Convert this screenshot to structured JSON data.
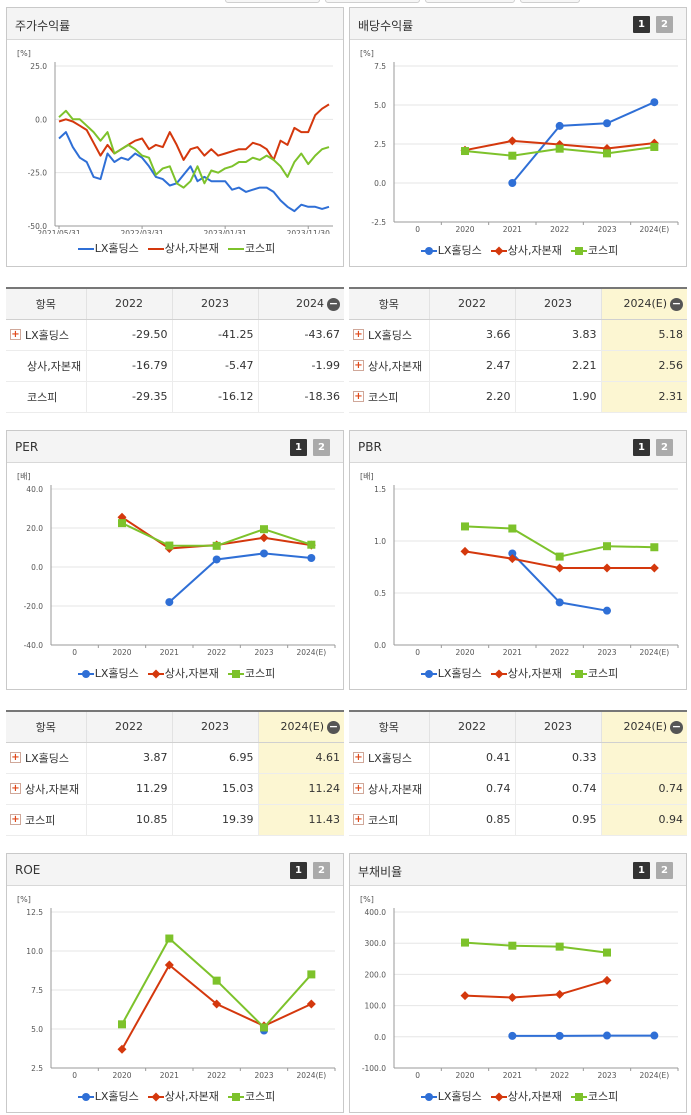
{
  "panels": [
    {
      "id": "stock-return",
      "title": "주가수익률",
      "paged": false,
      "chart_data": {
        "type": "line",
        "unit": "[%]",
        "ylim": [
          -50,
          25
        ],
        "yticks": [
          "25.0",
          "0.0",
          "-25.0",
          "-50.0"
        ],
        "ytickvals": [
          25,
          0,
          -25,
          -50
        ],
        "xticks": [
          "2021/05/31",
          "2022/03/31",
          "2023/01/31",
          "2023/11/30"
        ],
        "points": 40,
        "series": [
          {
            "name": "LX홀딩스",
            "color": "#2f6fd6",
            "marker": "none",
            "values": [
              -9,
              -6,
              -13,
              -18,
              -20,
              -27,
              -28,
              -16,
              -20,
              -18,
              -19,
              -16,
              -18,
              -22,
              -27,
              -28,
              -31,
              -30,
              -26,
              -22,
              -29,
              -27,
              -29,
              -29,
              -29,
              -33,
              -32,
              -34,
              -33,
              -32,
              -32,
              -34,
              -38,
              -41,
              -43,
              -40,
              -41,
              -41,
              -42,
              -41
            ]
          },
          {
            "name": "상사,자본재",
            "color": "#d4380d",
            "marker": "none",
            "values": [
              -1,
              0,
              -1,
              -3,
              -5,
              -11,
              -17,
              -12,
              -16,
              -14,
              -12,
              -10,
              -9,
              -14,
              -12,
              -13,
              -6,
              -12,
              -19,
              -14,
              -13,
              -17,
              -14,
              -17,
              -16,
              -15,
              -14,
              -14,
              -11,
              -12,
              -14,
              -19,
              -10,
              -12,
              -4,
              -6,
              -6,
              2,
              5,
              7
            ]
          },
          {
            "name": "코스피",
            "color": "#7dc22b",
            "marker": "none",
            "values": [
              1,
              4,
              0,
              0,
              -3,
              -6,
              -10,
              -6,
              -16,
              -14,
              -12,
              -14,
              -17,
              -18,
              -26,
              -23,
              -22,
              -30,
              -32,
              -29,
              -22,
              -30,
              -24,
              -25,
              -23,
              -22,
              -20,
              -20,
              -18,
              -19,
              -17,
              -19,
              -22,
              -27,
              -20,
              -16,
              -21,
              -17,
              -14,
              -13
            ]
          }
        ]
      },
      "table": {
        "headers": [
          "항목",
          "2022",
          "2023",
          "2024"
        ],
        "has_estimate": false,
        "rows": [
          {
            "label": "LX홀딩스",
            "plus": true,
            "values": [
              "-29.50",
              "-41.25",
              "-43.67"
            ]
          },
          {
            "label": "상사,자본재",
            "plus": false,
            "values": [
              "-16.79",
              "-5.47",
              "-1.99"
            ]
          },
          {
            "label": "코스피",
            "plus": false,
            "values": [
              "-29.35",
              "-16.12",
              "-18.36"
            ]
          }
        ]
      }
    },
    {
      "id": "dividend-yield",
      "title": "배당수익률",
      "paged": true,
      "page_labels": [
        "1",
        "2"
      ],
      "chart_data": {
        "type": "line",
        "unit": "[%]",
        "ylim": [
          -2.5,
          7.5
        ],
        "yticks": [
          "7.5",
          "5.0",
          "2.5",
          "0.0",
          "-2.5"
        ],
        "ytickvals": [
          7.5,
          5,
          2.5,
          0,
          -2.5
        ],
        "xticks": [
          "0",
          "2020",
          "2021",
          "2022",
          "2023",
          "2024(E)"
        ],
        "series": [
          {
            "name": "LX홀딩스",
            "color": "#2f6fd6",
            "marker": "circle",
            "values": [
              null,
              null,
              0.0,
              3.66,
              3.83,
              5.18
            ]
          },
          {
            "name": "상사,자본재",
            "color": "#d4380d",
            "marker": "diamond",
            "values": [
              null,
              2.1,
              2.7,
              2.47,
              2.21,
              2.56
            ]
          },
          {
            "name": "코스피",
            "color": "#7dc22b",
            "marker": "square",
            "values": [
              null,
              2.05,
              1.75,
              2.2,
              1.9,
              2.31
            ]
          }
        ]
      },
      "table": {
        "headers": [
          "항목",
          "2022",
          "2023",
          "2024(E)"
        ],
        "has_estimate": true,
        "rows": [
          {
            "label": "LX홀딩스",
            "plus": true,
            "values": [
              "3.66",
              "3.83",
              "5.18"
            ]
          },
          {
            "label": "상사,자본재",
            "plus": true,
            "values": [
              "2.47",
              "2.21",
              "2.56"
            ]
          },
          {
            "label": "코스피",
            "plus": true,
            "values": [
              "2.20",
              "1.90",
              "2.31"
            ]
          }
        ]
      }
    },
    {
      "id": "per",
      "title": "PER",
      "paged": true,
      "page_labels": [
        "1",
        "2"
      ],
      "chart_data": {
        "type": "line",
        "unit": "[배]",
        "ylim": [
          -40,
          40
        ],
        "yticks": [
          "40.0",
          "20.0",
          "0.0",
          "-20.0",
          "-40.0"
        ],
        "ytickvals": [
          40,
          20,
          0,
          -20,
          -40
        ],
        "xticks": [
          "0",
          "2020",
          "2021",
          "2022",
          "2023",
          "2024(E)"
        ],
        "series": [
          {
            "name": "LX홀딩스",
            "color": "#2f6fd6",
            "marker": "circle",
            "values": [
              null,
              null,
              -18,
              3.87,
              6.95,
              4.61
            ]
          },
          {
            "name": "상사,자본재",
            "color": "#d4380d",
            "marker": "diamond",
            "values": [
              null,
              25.5,
              9.5,
              11.29,
              15.03,
              11.24
            ]
          },
          {
            "name": "코스피",
            "color": "#7dc22b",
            "marker": "square",
            "values": [
              null,
              22.5,
              11.0,
              10.85,
              19.39,
              11.43
            ]
          }
        ]
      },
      "table": {
        "headers": [
          "항목",
          "2022",
          "2023",
          "2024(E)"
        ],
        "has_estimate": true,
        "rows": [
          {
            "label": "LX홀딩스",
            "plus": true,
            "values": [
              "3.87",
              "6.95",
              "4.61"
            ]
          },
          {
            "label": "상사,자본재",
            "plus": true,
            "values": [
              "11.29",
              "15.03",
              "11.24"
            ]
          },
          {
            "label": "코스피",
            "plus": true,
            "values": [
              "10.85",
              "19.39",
              "11.43"
            ]
          }
        ]
      }
    },
    {
      "id": "pbr",
      "title": "PBR",
      "paged": true,
      "page_labels": [
        "1",
        "2"
      ],
      "chart_data": {
        "type": "line",
        "unit": "[배]",
        "ylim": [
          0,
          1.5
        ],
        "yticks": [
          "1.5",
          "1.0",
          "0.5",
          "0.0"
        ],
        "ytickvals": [
          1.5,
          1.0,
          0.5,
          0
        ],
        "xticks": [
          "0",
          "2020",
          "2021",
          "2022",
          "2023",
          "2024(E)"
        ],
        "series": [
          {
            "name": "LX홀딩스",
            "color": "#2f6fd6",
            "marker": "circle",
            "values": [
              null,
              null,
              0.88,
              0.41,
              0.33,
              null
            ]
          },
          {
            "name": "상사,자본재",
            "color": "#d4380d",
            "marker": "diamond",
            "values": [
              null,
              0.9,
              0.83,
              0.74,
              0.74,
              0.74
            ]
          },
          {
            "name": "코스피",
            "color": "#7dc22b",
            "marker": "square",
            "values": [
              null,
              1.14,
              1.12,
              0.85,
              0.95,
              0.94
            ]
          }
        ]
      },
      "table": {
        "headers": [
          "항목",
          "2022",
          "2023",
          "2024(E)"
        ],
        "has_estimate": true,
        "rows": [
          {
            "label": "LX홀딩스",
            "plus": true,
            "values": [
              "0.41",
              "0.33",
              ""
            ]
          },
          {
            "label": "상사,자본재",
            "plus": true,
            "values": [
              "0.74",
              "0.74",
              "0.74"
            ]
          },
          {
            "label": "코스피",
            "plus": true,
            "values": [
              "0.85",
              "0.95",
              "0.94"
            ]
          }
        ]
      }
    },
    {
      "id": "roe",
      "title": "ROE",
      "paged": true,
      "page_labels": [
        "1",
        "2"
      ],
      "chart_data": {
        "type": "line",
        "unit": "[%]",
        "ylim": [
          2.5,
          12.5
        ],
        "yticks": [
          "12.5",
          "10.0",
          "7.5",
          "5.0",
          "2.5"
        ],
        "ytickvals": [
          12.5,
          10,
          7.5,
          5,
          2.5
        ],
        "xticks": [
          "0",
          "2020",
          "2021",
          "2022",
          "2023",
          "2024(E)"
        ],
        "series": [
          {
            "name": "LX홀딩스",
            "color": "#2f6fd6",
            "marker": "circle",
            "values": [
              null,
              null,
              null,
              null,
              4.9,
              null
            ]
          },
          {
            "name": "상사,자본재",
            "color": "#d4380d",
            "marker": "diamond",
            "values": [
              null,
              3.7,
              9.1,
              6.6,
              5.2,
              6.6
            ]
          },
          {
            "name": "코스피",
            "color": "#7dc22b",
            "marker": "square",
            "values": [
              null,
              5.3,
              10.8,
              8.1,
              5.1,
              8.5
            ]
          }
        ]
      }
    },
    {
      "id": "debt-ratio",
      "title": "부채비율",
      "paged": true,
      "page_labels": [
        "1",
        "2"
      ],
      "chart_data": {
        "type": "line",
        "unit": "[%]",
        "ylim": [
          -100,
          400
        ],
        "yticks": [
          "400.0",
          "300.0",
          "200.0",
          "100.0",
          "0.0",
          "-100.0"
        ],
        "ytickvals": [
          400,
          300,
          200,
          100,
          0,
          -100
        ],
        "xticks": [
          "0",
          "2020",
          "2021",
          "2022",
          "2023",
          "2024(E)"
        ],
        "series": [
          {
            "name": "LX홀딩스",
            "color": "#2f6fd6",
            "marker": "circle",
            "values": [
              null,
              null,
              3,
              3,
              4,
              4
            ]
          },
          {
            "name": "상사,자본재",
            "color": "#d4380d",
            "marker": "diamond",
            "values": [
              null,
              132,
              126,
              136,
              181,
              null
            ]
          },
          {
            "name": "코스피",
            "color": "#7dc22b",
            "marker": "square",
            "values": [
              null,
              302,
              292,
              289,
              270,
              null
            ]
          }
        ]
      }
    }
  ],
  "legend": [
    "LX홀딩스",
    "상사,자본재",
    "코스피"
  ]
}
